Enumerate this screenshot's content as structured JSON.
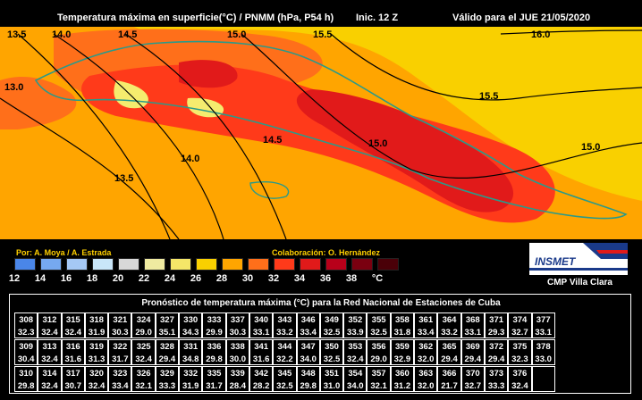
{
  "header": {
    "title": "Temperatura máxima en superficie(°C) / PNMM (hPa, P54 h)",
    "init": "Inic. 12 Z",
    "valid": "Válido para el JUE 21/05/2020"
  },
  "map": {
    "isobar_labels": [
      "13.5",
      "14.0",
      "14.5",
      "15.0",
      "15.5",
      "16.0",
      "13.0",
      "15.5",
      "14.5",
      "15.0",
      "15.0",
      "14.0",
      "13.5"
    ],
    "colors": {
      "bg26": "#f9d000",
      "c28": "#ffa500",
      "c30": "#ff6f1a",
      "c32": "#ff3a1a",
      "c34": "#e11a1a",
      "c24": "#f5ec6e",
      "land_outline": "#2a9a8a"
    }
  },
  "credits": {
    "authors": "Por: A. Moya / A. Estrada",
    "collab": "Colaboración: O. Hernández"
  },
  "scale": {
    "labels": [
      "12",
      "14",
      "16",
      "18",
      "20",
      "22",
      "24",
      "26",
      "28",
      "30",
      "32",
      "34",
      "36",
      "38",
      "°C"
    ],
    "colors": [
      "#4a86e8",
      "#76a9f0",
      "#a5c8f5",
      "#c9e6f9",
      "#d8d8d8",
      "#efeaa0",
      "#f5e668",
      "#f9d000",
      "#ffa500",
      "#ff6f1a",
      "#ff3a1a",
      "#e11a1a",
      "#b8001a",
      "#7a0010",
      "#4a0008"
    ]
  },
  "logo": {
    "name": "INSMET",
    "org": "CMP  Villa Clara"
  },
  "table": {
    "title": "Pronóstico de temperatura máxima (°C) para la Red Nacional de Estaciones de Cuba",
    "rows": [
      [
        [
          "308",
          "32.3"
        ],
        [
          "312",
          "32.4"
        ],
        [
          "315",
          "32.4"
        ],
        [
          "318",
          "31.9"
        ],
        [
          "321",
          "30.3"
        ],
        [
          "324",
          "29.0"
        ],
        [
          "327",
          "35.1"
        ],
        [
          "330",
          "34.3"
        ],
        [
          "333",
          "29.9"
        ],
        [
          "337",
          "30.3"
        ],
        [
          "340",
          "33.1"
        ],
        [
          "343",
          "33.2"
        ],
        [
          "346",
          "33.4"
        ],
        [
          "349",
          "32.5"
        ],
        [
          "352",
          "33.9"
        ],
        [
          "355",
          "32.5"
        ],
        [
          "358",
          "31.8"
        ],
        [
          "361",
          "33.4"
        ],
        [
          "364",
          "33.2"
        ],
        [
          "368",
          "33.1"
        ],
        [
          "371",
          "29.3"
        ],
        [
          "374",
          "32.7"
        ],
        [
          "377",
          "33.1"
        ]
      ],
      [
        [
          "309",
          "30.4"
        ],
        [
          "313",
          "32.4"
        ],
        [
          "316",
          "31.6"
        ],
        [
          "319",
          "31.3"
        ],
        [
          "322",
          "31.7"
        ],
        [
          "325",
          "32.4"
        ],
        [
          "328",
          "29.4"
        ],
        [
          "331",
          "34.8"
        ],
        [
          "336",
          "29.8"
        ],
        [
          "338",
          "30.0"
        ],
        [
          "341",
          "31.6"
        ],
        [
          "344",
          "32.2"
        ],
        [
          "347",
          "34.0"
        ],
        [
          "350",
          "32.5"
        ],
        [
          "353",
          "32.4"
        ],
        [
          "356",
          "29.0"
        ],
        [
          "359",
          "32.9"
        ],
        [
          "362",
          "32.0"
        ],
        [
          "365",
          "29.4"
        ],
        [
          "369",
          "29.4"
        ],
        [
          "372",
          "29.4"
        ],
        [
          "375",
          "32.3"
        ],
        [
          "378",
          "33.0"
        ]
      ],
      [
        [
          "310",
          "29.8"
        ],
        [
          "314",
          "32.4"
        ],
        [
          "317",
          "30.7"
        ],
        [
          "320",
          "32.4"
        ],
        [
          "323",
          "33.4"
        ],
        [
          "326",
          "32.1"
        ],
        [
          "329",
          "33.3"
        ],
        [
          "332",
          "31.9"
        ],
        [
          "335",
          "31.7"
        ],
        [
          "339",
          "28.4"
        ],
        [
          "342",
          "28.2"
        ],
        [
          "345",
          "32.5"
        ],
        [
          "348",
          "29.8"
        ],
        [
          "351",
          "31.0"
        ],
        [
          "354",
          "34.0"
        ],
        [
          "357",
          "32.1"
        ],
        [
          "360",
          "31.2"
        ],
        [
          "363",
          "32.0"
        ],
        [
          "366",
          "21.7"
        ],
        [
          "370",
          "32.7"
        ],
        [
          "373",
          "33.3"
        ],
        [
          "376",
          "32.4"
        ],
        [
          "",
          ""
        ]
      ]
    ]
  }
}
